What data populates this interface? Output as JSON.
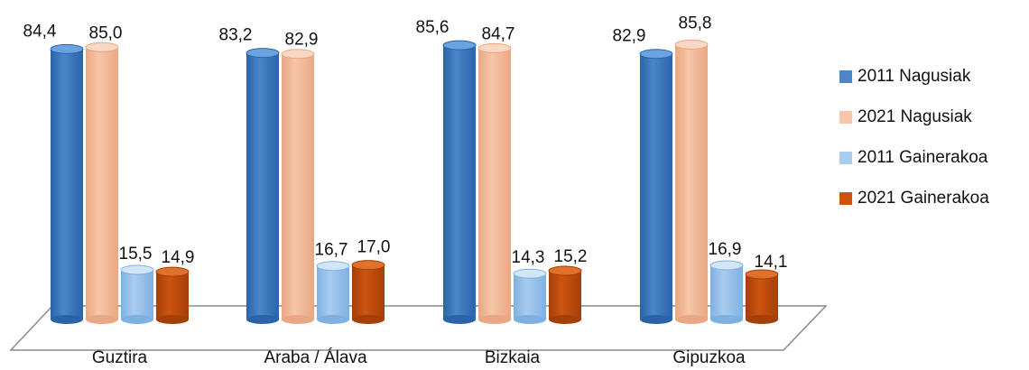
{
  "chart_data": {
    "type": "bar",
    "categories": [
      "Guztira",
      "Araba / Álava",
      "Bizkaia",
      "Gipuzkoa"
    ],
    "series": [
      {
        "name": "2011 Nagusiak",
        "values": [
          84.4,
          83.2,
          85.6,
          82.9
        ],
        "labels": [
          "84,4",
          "83,2",
          "85,6",
          "82,9"
        ],
        "color": "#4a86c9",
        "color_dark": "#2b63a8",
        "color_top": "#6aa3e0"
      },
      {
        "name": "2021 Nagusiak",
        "values": [
          85.0,
          82.9,
          84.7,
          85.8
        ],
        "labels": [
          "85,0",
          "82,9",
          "84,7",
          "85,8"
        ],
        "color": "#f6c6a8",
        "color_dark": "#e9a783",
        "color_top": "#f9d8c3"
      },
      {
        "name": "2011 Gainerakoa",
        "values": [
          15.5,
          16.7,
          14.3,
          16.9
        ],
        "labels": [
          "15,5",
          "16,7",
          "14,3",
          "16,9"
        ],
        "color": "#a9ccef",
        "color_dark": "#7fb0e2",
        "color_top": "#d3e6f8"
      },
      {
        "name": "2021 Gainerakoa",
        "values": [
          14.9,
          17.0,
          15.2,
          14.1
        ],
        "labels": [
          "14,9",
          "17,0",
          "15,2",
          "14,1"
        ],
        "color": "#cc5410",
        "color_dark": "#a53f08",
        "color_top": "#e0712d"
      }
    ],
    "ylim": [
      0,
      100
    ],
    "legend_position": "right",
    "grid": false
  }
}
